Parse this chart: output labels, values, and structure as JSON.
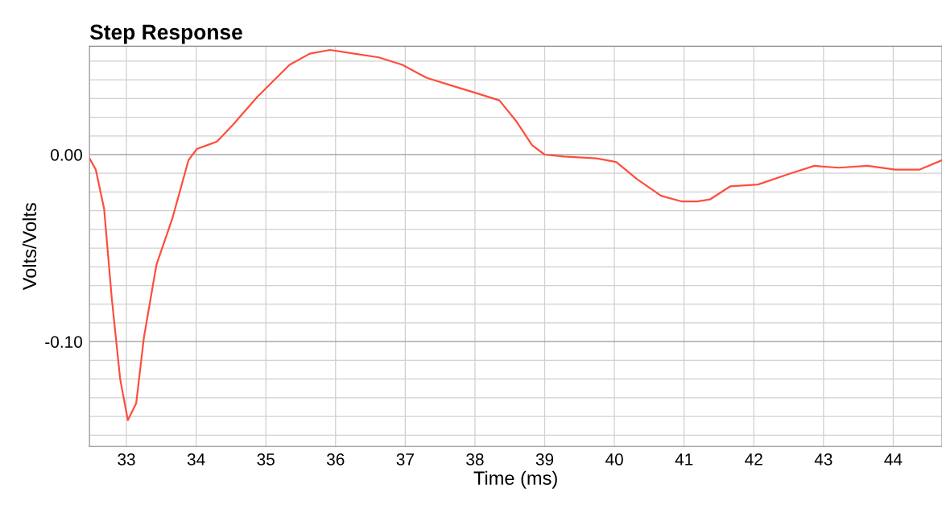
{
  "chart_data": {
    "type": "line",
    "title": "Step Response",
    "xlabel": "Time (ms)",
    "ylabel": "Volts/Volts",
    "xlim": [
      32.47,
      44.7
    ],
    "ylim": [
      -0.156,
      0.058
    ],
    "xticks": [
      33,
      34,
      35,
      36,
      37,
      38,
      39,
      40,
      41,
      42,
      43,
      44
    ],
    "yticks": [
      {
        "value": 0.05,
        "label": null
      },
      {
        "value": 0.04,
        "label": null
      },
      {
        "value": 0.03,
        "label": null
      },
      {
        "value": 0.02,
        "label": null
      },
      {
        "value": 0.01,
        "label": null
      },
      {
        "value": 0,
        "label": "0.00"
      },
      {
        "value": -0.01,
        "label": null
      },
      {
        "value": -0.02,
        "label": null
      },
      {
        "value": -0.03,
        "label": null
      },
      {
        "value": -0.04,
        "label": null
      },
      {
        "value": -0.05,
        "label": null
      },
      {
        "value": -0.06,
        "label": null
      },
      {
        "value": -0.07,
        "label": null
      },
      {
        "value": -0.08,
        "label": null
      },
      {
        "value": -0.09,
        "label": null
      },
      {
        "value": -0.1,
        "label": "-0.10"
      },
      {
        "value": -0.11,
        "label": null
      },
      {
        "value": -0.12,
        "label": null
      },
      {
        "value": -0.13,
        "label": null
      },
      {
        "value": -0.14,
        "label": null
      },
      {
        "value": -0.15,
        "label": null
      }
    ],
    "grid": true,
    "legend": false,
    "marker": "none",
    "line_style": "solid",
    "series": [
      {
        "color": "#ff4d3d",
        "x": [
          32.47,
          32.56,
          32.68,
          32.79,
          32.91,
          33.02,
          33.14,
          33.25,
          33.43,
          33.66,
          33.89,
          34.01,
          34.3,
          34.53,
          34.88,
          35.34,
          35.63,
          35.92,
          36.27,
          36.62,
          36.96,
          37.31,
          37.66,
          38.01,
          38.35,
          38.59,
          38.82,
          39.0,
          39.28,
          39.74,
          40.03,
          40.32,
          40.67,
          40.96,
          41.19,
          41.37,
          41.66,
          42.06,
          42.53,
          42.87,
          43.22,
          43.63,
          44.03,
          44.38,
          44.7
        ],
        "values": [
          -0.002,
          -0.008,
          -0.029,
          -0.077,
          -0.12,
          -0.142,
          -0.133,
          -0.098,
          -0.059,
          -0.034,
          -0.003,
          0.003,
          0.007,
          0.016,
          0.031,
          0.048,
          0.054,
          0.056,
          0.054,
          0.052,
          0.048,
          0.041,
          0.037,
          0.033,
          0.029,
          0.018,
          0.005,
          0.0,
          -0.001,
          -0.002,
          -0.004,
          -0.013,
          -0.022,
          -0.025,
          -0.025,
          -0.024,
          -0.017,
          -0.016,
          -0.01,
          -0.006,
          -0.007,
          -0.006,
          -0.008,
          -0.008,
          -0.003
        ]
      }
    ]
  }
}
